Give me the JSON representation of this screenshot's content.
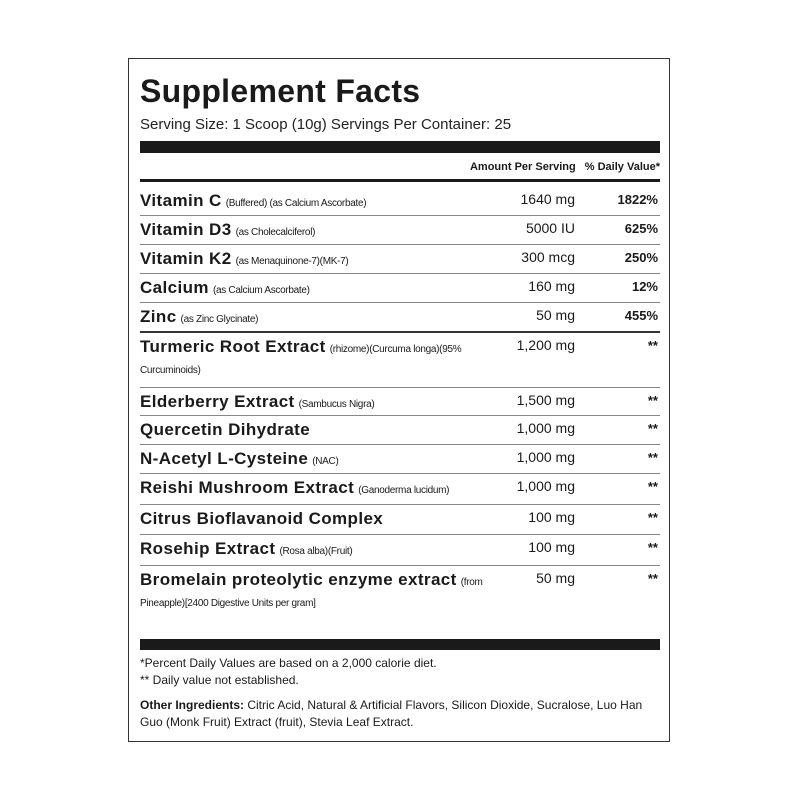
{
  "title": "Supplement Facts",
  "serving": "Serving Size: 1 Scoop (10g)  Servings Per Container: 25",
  "header": {
    "amount": "Amount Per Serving",
    "dv": "% Daily Value*"
  },
  "nutrients": [
    {
      "name": "Vitamin C",
      "sub": "(Buffered) (as Calcium Ascorbate)",
      "amount": "1640 mg",
      "dv": "1822%"
    },
    {
      "name": "Vitamin D3",
      "sub": "(as Cholecalciferol)",
      "amount": "5000 IU",
      "dv": "625%"
    },
    {
      "name": "Vitamin K2",
      "sub": "(as Menaquinone-7)(MK-7)",
      "amount": "300 mcg",
      "dv": "250%"
    },
    {
      "name": "Calcium",
      "sub": "(as Calcium Ascorbate)",
      "amount": "160 mg",
      "dv": "12%"
    },
    {
      "name": "Zinc",
      "sub": "(as Zinc Glycinate)",
      "amount": "50 mg",
      "dv": "455%"
    }
  ],
  "others": [
    {
      "name": "Turmeric Root Extract",
      "sub": "(rhizome)(Curcuma longa)(95% Curcuminoids)",
      "amount": "1,200 mg",
      "dv": "**"
    },
    {
      "name": "Elderberry Extract",
      "sub": "(Sambucus Nigra)",
      "amount": "1,500 mg",
      "dv": "**"
    },
    {
      "name": "Quercetin Dihydrate",
      "sub": "",
      "amount": "1,000 mg",
      "dv": "**"
    },
    {
      "name": "N-Acetyl L-Cysteine",
      "sub": "(NAC)",
      "amount": "1,000 mg",
      "dv": "**"
    },
    {
      "name": "Reishi Mushroom Extract",
      "sub": "(Ganoderma lucidum)",
      "amount": "1,000 mg",
      "dv": "**"
    },
    {
      "name": "Citrus Bioflavanoid Complex",
      "sub": "",
      "amount": "100 mg",
      "dv": "**"
    },
    {
      "name": "Rosehip Extract",
      "sub": "(Rosa alba)(Fruit)",
      "amount": "100 mg",
      "dv": "**"
    },
    {
      "name": "Bromelain proteolytic enzyme extract",
      "sub": "(from Pineapple)[2400 Digestive Units per gram]",
      "amount": "50 mg",
      "dv": "**"
    }
  ],
  "footnotes": {
    "dv_note": "*Percent Daily Values are based on a 2,000 calorie diet.",
    "not_established": "** Daily value not established.",
    "other_label": "Other Ingredients:",
    "other_text": " Citric Acid, Natural & Artificial Flavors, Silicon Dioxide, Sucralose, Luo Han Guo (Monk Fruit) Extract (fruit), Stevia Leaf Extract."
  }
}
